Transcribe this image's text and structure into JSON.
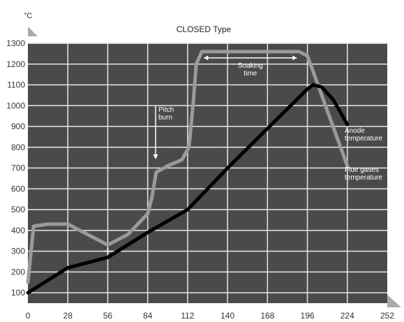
{
  "chart_data": {
    "type": "line",
    "title": "CLOSED Type",
    "ylabel": "°C",
    "xlabel": "",
    "xlim": [
      0,
      252
    ],
    "ylim": [
      50,
      1300
    ],
    "x_ticks": [
      0,
      28,
      56,
      84,
      112,
      140,
      168,
      196,
      224,
      252
    ],
    "y_ticks": [
      100,
      200,
      300,
      400,
      500,
      600,
      700,
      800,
      900,
      1000,
      1100,
      1200,
      1300
    ],
    "grid": true,
    "colors": {
      "plot_bg": "#4a4a4a",
      "grid": "#e8e8e8",
      "anode": "#000000",
      "flue": "#9a9a9a",
      "annotation": "#ffffff"
    },
    "series": [
      {
        "name": "Anode temperature",
        "label_lines": [
          "Anode",
          "temperature"
        ],
        "x": [
          0,
          28,
          56,
          84,
          112,
          140,
          168,
          196,
          200,
          206,
          214,
          224
        ],
        "y": [
          100,
          220,
          270,
          390,
          500,
          700,
          890,
          1080,
          1100,
          1090,
          1030,
          910
        ]
      },
      {
        "name": "Flue gases temperature",
        "label_lines": [
          "Flue gases",
          "temperature"
        ],
        "x": [
          0,
          4,
          14,
          28,
          56,
          70,
          84,
          87,
          90,
          98,
          108,
          113,
          116,
          118,
          122,
          190,
          196,
          224
        ],
        "y": [
          150,
          420,
          430,
          430,
          330,
          380,
          480,
          560,
          680,
          710,
          740,
          800,
          1020,
          1200,
          1260,
          1260,
          1240,
          710
        ]
      }
    ],
    "annotations": {
      "pitch_burn": {
        "lines": [
          "Pitch",
          "burn"
        ]
      },
      "soaking_time": {
        "lines": [
          "Soaking",
          "time"
        ],
        "x_start": 122,
        "x_end": 190,
        "y": 1230
      }
    }
  }
}
